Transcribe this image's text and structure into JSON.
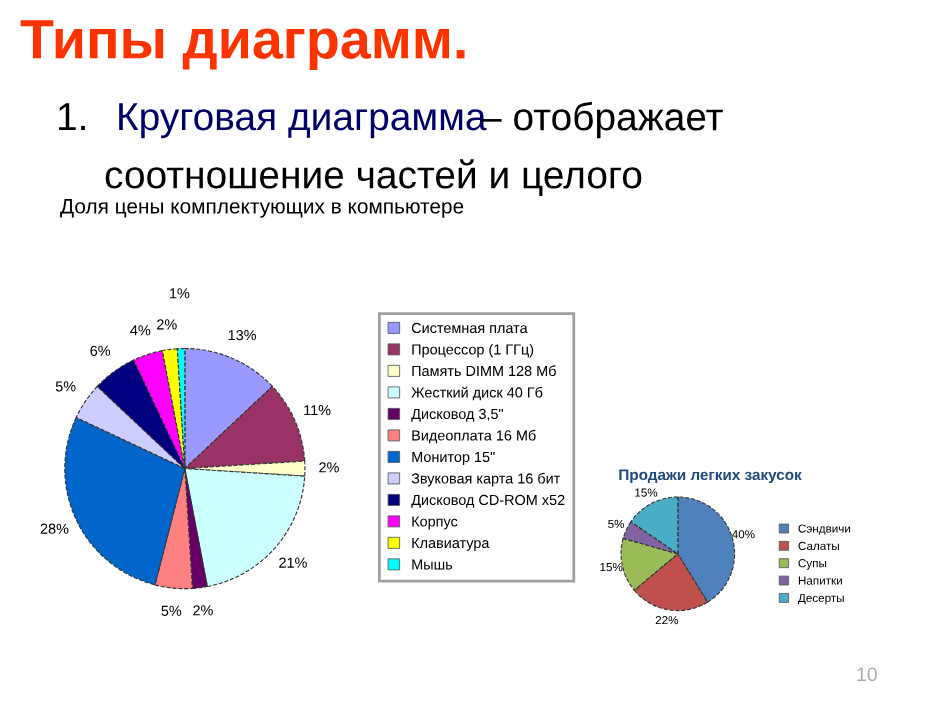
{
  "chart_data": [
    {
      "type": "pie",
      "title": "Доля цены комплектующих в компьютере",
      "annotations": [
        "Типы диаграмм.",
        "1.",
        "Круговая диаграмма",
        "– отображает",
        "соотношение частей и целого",
        "10"
      ],
      "categories": [
        "Системная плата",
        "Процессор (1 ГГц)",
        "Память DIMM 128 Мб",
        "Жесткий диск 40 Гб",
        "Дисковод 3,5\"",
        "Видеоплата 16 Мб",
        "Монитор 15\"",
        "Звуковая карта 16 бит",
        "Дисковод CD-ROM x52",
        "Корпус",
        "Клавиатура",
        "Мышь"
      ],
      "values": [
        13,
        11,
        2,
        21,
        2,
        5,
        28,
        5,
        6,
        4,
        2,
        1
      ],
      "value_labels": [
        "13%",
        "11%",
        "2%",
        "21%",
        "2%",
        "5%",
        "28%",
        "5%",
        "6%",
        "4%",
        "2%",
        "1%"
      ],
      "colors": [
        "#9999ff",
        "#993366",
        "#ffffcc",
        "#ccffff",
        "#660066",
        "#ff8080",
        "#0066cc",
        "#ccccff",
        "#000080",
        "#ff00ff",
        "#ffff00",
        "#00ffff"
      ],
      "legend": "right"
    },
    {
      "type": "pie",
      "title": "Продажи легких закусок",
      "categories": [
        "Сэндвичи",
        "Салаты",
        "Супы",
        "Напитки",
        "Десерты"
      ],
      "values": [
        40,
        22,
        15,
        5,
        15
      ],
      "value_labels": [
        "40%",
        "22%",
        "15%",
        "5%",
        "15%"
      ],
      "colors": [
        "#4f81bd",
        "#c0504d",
        "#9bbb59",
        "#8064a2",
        "#4bacc6"
      ],
      "legend": "right"
    }
  ]
}
